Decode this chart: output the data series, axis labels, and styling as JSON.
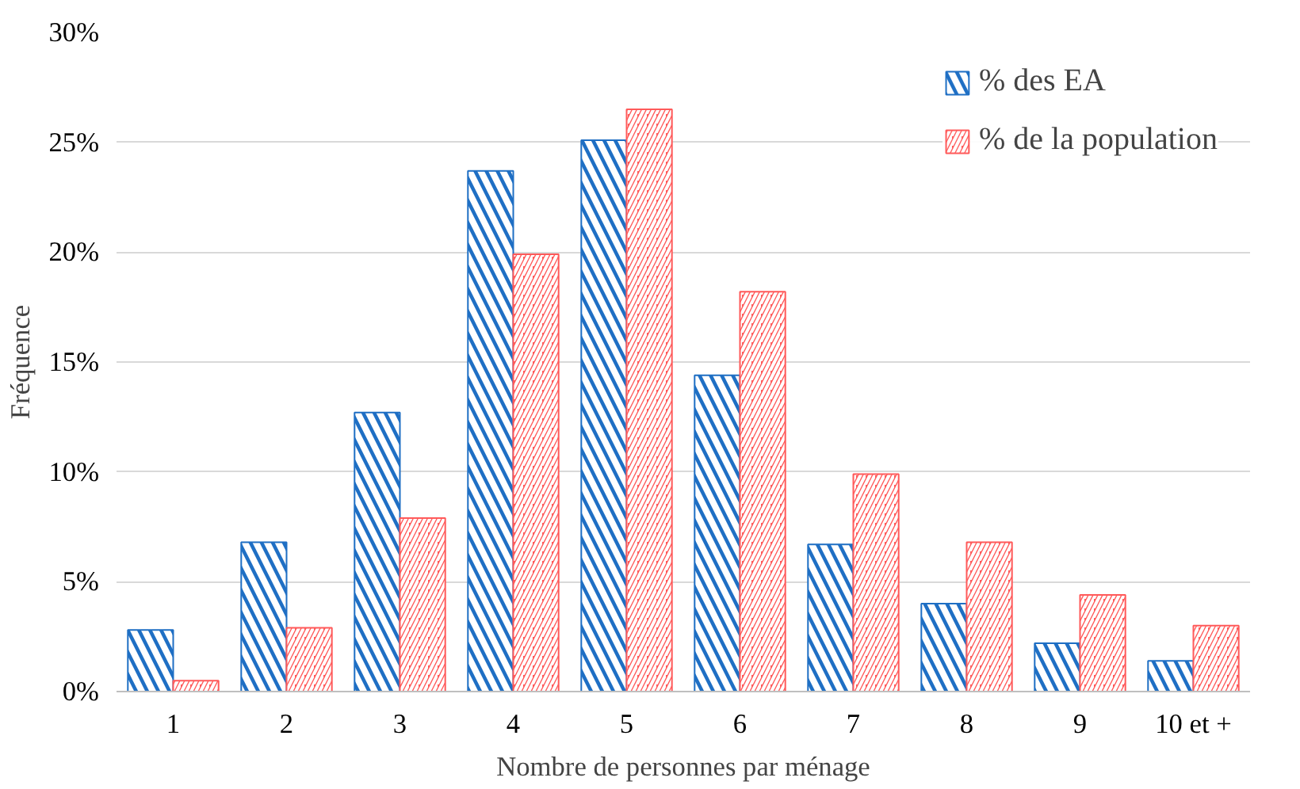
{
  "chart_data": {
    "type": "bar",
    "xlabel": "Nombre de personnes par ménage",
    "ylabel": "Fréquence",
    "categories": [
      "1",
      "2",
      "3",
      "4",
      "5",
      "6",
      "7",
      "8",
      "9",
      "10 et +"
    ],
    "series": [
      {
        "name": "% des EA",
        "color": "#1f6fc4",
        "values": [
          2.8,
          6.8,
          12.7,
          23.7,
          25.1,
          14.4,
          6.7,
          4.0,
          2.2,
          1.4
        ]
      },
      {
        "name": "% de la population",
        "color": "#ff5a5a",
        "values": [
          0.5,
          2.9,
          7.9,
          19.9,
          26.5,
          18.2,
          9.9,
          6.8,
          4.4,
          3.0
        ]
      }
    ],
    "ylim": [
      0,
      30
    ],
    "yticks": [
      {
        "value": 0,
        "label": "0%"
      },
      {
        "value": 5,
        "label": "5%"
      },
      {
        "value": 10,
        "label": "10%"
      },
      {
        "value": 15,
        "label": "15%"
      },
      {
        "value": 20,
        "label": "20%"
      },
      {
        "value": 25,
        "label": "25%"
      },
      {
        "value": 30,
        "label": "30%"
      }
    ],
    "grid": "y",
    "legend": "top right"
  }
}
